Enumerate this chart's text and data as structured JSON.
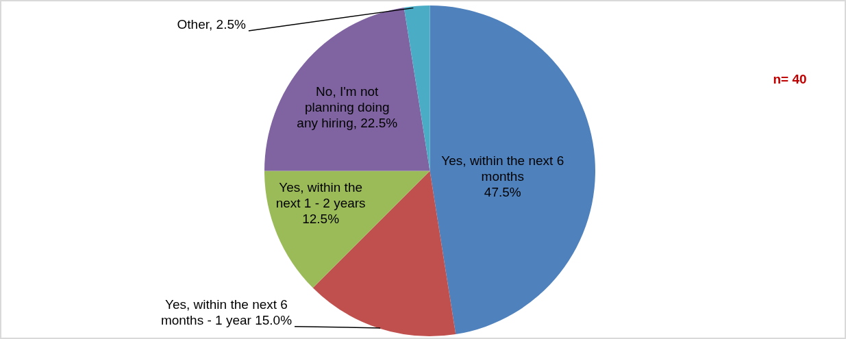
{
  "chart_data": {
    "type": "pie",
    "categories": [
      "Yes, within the next 6 months",
      "Yes, within the next 6 months - 1 year",
      "Yes, within the next 1 - 2 years",
      "No, I'm not planning doing any hiring",
      "Other"
    ],
    "values": [
      47.5,
      15.0,
      12.5,
      22.5,
      2.5
    ],
    "value_labels": [
      "47.5%",
      "15.0%",
      "12.5%",
      "22.5%",
      "2.5%"
    ],
    "colors": [
      "#4f81bd",
      "#c0504d",
      "#9bbb59",
      "#8064a2",
      "#4bacc6"
    ],
    "annotations": [
      "n= 40"
    ],
    "legend": false
  }
}
